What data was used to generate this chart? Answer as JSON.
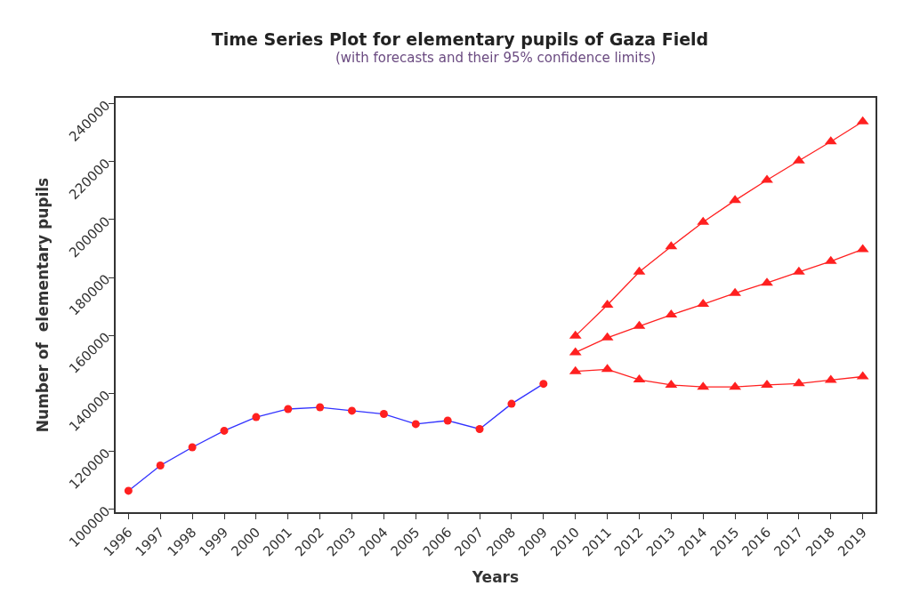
{
  "chart_data": {
    "type": "line",
    "title": "Time Series Plot for elementary pupils of Gaza Field",
    "subtitle": "(with forecasts and their 95% confidence limits)",
    "xlabel": "Years",
    "ylabel": "Number of  elementary pupils",
    "x": [
      1996,
      1997,
      1998,
      1999,
      2000,
      2001,
      2002,
      2003,
      2004,
      2005,
      2006,
      2007,
      2008,
      2009
    ],
    "series": [
      {
        "color": "#3333ff",
        "marker": "circle",
        "colors": [
          "#ff2020",
          "#ff2020",
          "#ff2020",
          "#ff2020",
          "#ff2020",
          "#ff2020",
          "#ff2020",
          "#ff2020",
          "#ff2020",
          "#ff2020",
          "#ff2020",
          "#ff2020",
          "#ff2020",
          "#ff2020"
        ],
        "values": [
          106400,
          115100,
          121400,
          127100,
          131800,
          134600,
          135200,
          134000,
          132900,
          129400,
          130600,
          127700,
          136400,
          143300
        ]
      },
      {
        "color": "#ff2020",
        "marker": "triangle",
        "x": [
          2010,
          2011,
          2012,
          2013,
          2014,
          2015,
          2016,
          2017,
          2018,
          2019
        ],
        "values": [
          159800,
          170500,
          181900,
          190700,
          199100,
          206600,
          213600,
          220300,
          226900,
          233800
        ]
      },
      {
        "color": "#ff2020",
        "marker": "triangle",
        "x": [
          2010,
          2011,
          2012,
          2013,
          2014,
          2015,
          2016,
          2017,
          2018,
          2019
        ],
        "values": [
          154100,
          159200,
          163200,
          167100,
          170800,
          174600,
          178100,
          181900,
          185600,
          189700
        ]
      },
      {
        "color": "#ff2020",
        "marker": "triangle",
        "x": [
          2010,
          2011,
          2012,
          2013,
          2014,
          2015,
          2016,
          2017,
          2018,
          2019
        ],
        "values": [
          147600,
          148300,
          144700,
          142900,
          142200,
          142200,
          142900,
          143400,
          144600,
          145800
        ]
      }
    ],
    "xlim": [
      1995.6,
      2019.4
    ],
    "xticks": [
      1996,
      1997,
      1998,
      1999,
      2000,
      2001,
      2002,
      2003,
      2004,
      2005,
      2006,
      2007,
      2008,
      2009,
      2010,
      2011,
      2012,
      2013,
      2014,
      2015,
      2016,
      2017,
      2018,
      2019
    ],
    "ylim": [
      99000,
      242000
    ],
    "yticks": [
      100000,
      120000,
      140000,
      160000,
      180000,
      200000,
      220000,
      240000
    ],
    "line_style": "solid"
  }
}
